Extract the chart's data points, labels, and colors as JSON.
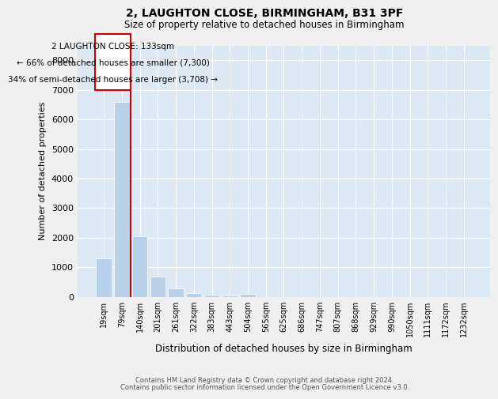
{
  "title_line1": "2, LAUGHTON CLOSE, BIRMINGHAM, B31 3PF",
  "title_line2": "Size of property relative to detached houses in Birmingham",
  "xlabel": "Distribution of detached houses by size in Birmingham",
  "ylabel": "Number of detached properties",
  "bar_color": "#b8d0e8",
  "background_color": "#dce8f4",
  "grid_color": "#ffffff",
  "annotation_color": "#cc0000",
  "categories": [
    "19sqm",
    "79sqm",
    "140sqm",
    "201sqm",
    "261sqm",
    "322sqm",
    "383sqm",
    "443sqm",
    "504sqm",
    "565sqm",
    "625sqm",
    "686sqm",
    "747sqm",
    "807sqm",
    "868sqm",
    "929sqm",
    "990sqm",
    "1050sqm",
    "1111sqm",
    "1172sqm",
    "1232sqm"
  ],
  "values": [
    1300,
    6600,
    2050,
    680,
    290,
    120,
    70,
    55,
    100,
    0,
    0,
    0,
    0,
    0,
    0,
    0,
    0,
    0,
    0,
    0,
    0
  ],
  "ylim": [
    0,
    8500
  ],
  "yticks": [
    0,
    1000,
    2000,
    3000,
    4000,
    5000,
    6000,
    7000,
    8000
  ],
  "vline_x": 1.5,
  "annotation_text_line1": "2 LAUGHTON CLOSE: 133sqm",
  "annotation_text_line2": "← 66% of detached houses are smaller (7,300)",
  "annotation_text_line3": "34% of semi-detached houses are larger (3,708) →",
  "footer_line1": "Contains HM Land Registry data © Crown copyright and database right 2024.",
  "footer_line2": "Contains public sector information licensed under the Open Government Licence v3.0."
}
